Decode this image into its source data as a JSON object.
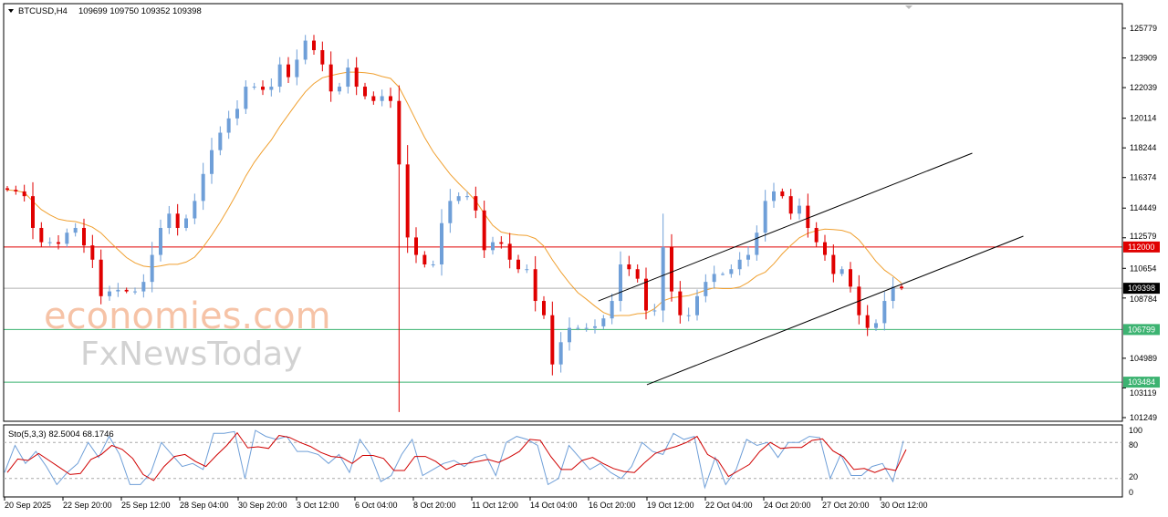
{
  "header": {
    "symbol": "BTCUSD,H4",
    "ohlc": "109699 109750 109352 109398"
  },
  "watermark": {
    "line1": "economies.com",
    "line2": "FxNewsToday"
  },
  "colors": {
    "bull": "#6f9fd8",
    "bear": "#e00000",
    "ma": "#f0a030",
    "stoch_main": "#6f9fd8",
    "stoch_signal": "#d00000",
    "resistance": "#e00000",
    "support": "#3cb371",
    "current": "#000000"
  },
  "chart_data": {
    "type": "candlestick",
    "title": "",
    "y_range": [
      101249,
      125779
    ],
    "y_ticks": [
      125779,
      123909,
      122039,
      120114,
      118244,
      116374,
      114449,
      112579,
      110654,
      108784,
      104989,
      103119,
      101249
    ],
    "x_ticks": [
      "20 Sep 2025",
      "22 Sep 20:00",
      "25 Sep 12:00",
      "28 Sep 04:00",
      "30 Sep 20:00",
      "3 Oct 12:00",
      "6 Oct 04:00",
      "8 Oct 20:00",
      "11 Oct 12:00",
      "14 Oct 04:00",
      "16 Oct 20:00",
      "19 Oct 12:00",
      "22 Oct 04:00",
      "24 Oct 20:00",
      "27 Oct 20:00",
      "30 Oct 12:00"
    ],
    "closes": [
      115600,
      115500,
      115200,
      113200,
      112300,
      112300,
      112200,
      112900,
      113200,
      112100,
      111200,
      108900,
      109200,
      109300,
      109200,
      109200,
      109800,
      111500,
      113200,
      114100,
      113200,
      113800,
      114900,
      116600,
      118100,
      119200,
      120100,
      120700,
      122100,
      122100,
      121900,
      122100,
      123500,
      122700,
      123800,
      125000,
      124400,
      123500,
      121800,
      122100,
      123300,
      122100,
      121500,
      121200,
      121500,
      121200,
      117200,
      112600,
      111500,
      110900,
      110900,
      113500,
      114900,
      115200,
      115200,
      114300,
      111800,
      112300,
      112200,
      111200,
      110600,
      110600,
      108600,
      107700,
      104600,
      106000,
      106900,
      106900,
      106900,
      107000,
      107500,
      108600,
      110900,
      110600,
      110000,
      108000,
      108000,
      112000,
      109200,
      107700,
      107700,
      108900,
      109800,
      110300,
      110300,
      110600,
      111200,
      111500,
      112900,
      114900,
      115500,
      115200,
      114100,
      114600,
      113200,
      112300,
      111500,
      110300,
      110600,
      109500,
      107700,
      106900,
      107200,
      108600,
      109500,
      109398
    ],
    "spike_wicks": [
      {
        "index": 46,
        "low": 101600
      },
      {
        "index": 77,
        "high": 114100
      }
    ],
    "moving_average": {
      "period": 12
    },
    "channel": {
      "upper": [
        {
          "index": 69.4,
          "price": 108600
        },
        {
          "index": 113.3,
          "price": 117910
        }
      ],
      "lower": [
        {
          "index": 75.1,
          "price": 103320
        },
        {
          "index": 119.3,
          "price": 112680
        }
      ]
    },
    "levels": [
      {
        "label": "112000",
        "price": 112000,
        "kind": "resistance"
      },
      {
        "label": "109398",
        "price": 109398,
        "kind": "current"
      },
      {
        "label": "106799",
        "price": 106799,
        "kind": "support"
      },
      {
        "label": "103484",
        "price": 103484,
        "kind": "support"
      }
    ],
    "stochastic": {
      "label": "Sto(5,3,3) 82.5004 68.1746",
      "range": [
        0,
        100
      ],
      "ticks": [
        "100",
        "80",
        "20",
        "0"
      ],
      "levels": [
        80,
        20
      ],
      "k": [
        30,
        75,
        45,
        65,
        40,
        10,
        30,
        45,
        80,
        55,
        90,
        60,
        10,
        10,
        30,
        80,
        60,
        40,
        45,
        35,
        95,
        95,
        98,
        20,
        100,
        90,
        85,
        90,
        65,
        65,
        60,
        45,
        60,
        30,
        85,
        60,
        15,
        25,
        60,
        85,
        25,
        35,
        45,
        50,
        40,
        55,
        60,
        25,
        80,
        90,
        85,
        75,
        10,
        20,
        75,
        55,
        35,
        45,
        30,
        20,
        40,
        80,
        65,
        60,
        95,
        85,
        90,
        5,
        55,
        10,
        35,
        85,
        75,
        80,
        55,
        80,
        80,
        90,
        88,
        20,
        60,
        25,
        25,
        40,
        45,
        15,
        82.5
      ]
    }
  }
}
